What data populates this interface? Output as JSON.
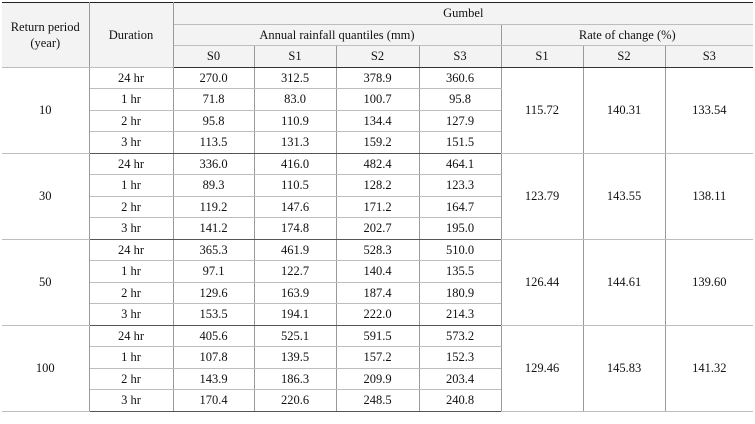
{
  "header": {
    "return_period": "Return period (year)",
    "duration": "Duration",
    "gumbel": "Gumbel",
    "annual_quantiles": "Annual rainfall quantiles (mm)",
    "rate_of_change": "Rate of change (%)",
    "quantile_cols": [
      "S0",
      "S1",
      "S2",
      "S3"
    ],
    "rate_cols": [
      "S1",
      "S2",
      "S3"
    ]
  },
  "groups": [
    {
      "return_period": "10",
      "rows": [
        {
          "duration": "24 hr",
          "s0": "270.0",
          "s1": "312.5",
          "s2": "378.9",
          "s3": "360.6"
        },
        {
          "duration": "1 hr",
          "s0": "71.8",
          "s1": "83.0",
          "s2": "100.7",
          "s3": "95.8"
        },
        {
          "duration": "2 hr",
          "s0": "95.8",
          "s1": "110.9",
          "s2": "134.4",
          "s3": "127.9"
        },
        {
          "duration": "3 hr",
          "s0": "113.5",
          "s1": "131.3",
          "s2": "159.2",
          "s3": "151.5"
        }
      ],
      "rate": {
        "s1": "115.72",
        "s2": "140.31",
        "s3": "133.54"
      }
    },
    {
      "return_period": "30",
      "rows": [
        {
          "duration": "24 hr",
          "s0": "336.0",
          "s1": "416.0",
          "s2": "482.4",
          "s3": "464.1"
        },
        {
          "duration": "1 hr",
          "s0": "89.3",
          "s1": "110.5",
          "s2": "128.2",
          "s3": "123.3"
        },
        {
          "duration": "2 hr",
          "s0": "119.2",
          "s1": "147.6",
          "s2": "171.2",
          "s3": "164.7"
        },
        {
          "duration": "3 hr",
          "s0": "141.2",
          "s1": "174.8",
          "s2": "202.7",
          "s3": "195.0"
        }
      ],
      "rate": {
        "s1": "123.79",
        "s2": "143.55",
        "s3": "138.11"
      }
    },
    {
      "return_period": "50",
      "rows": [
        {
          "duration": "24 hr",
          "s0": "365.3",
          "s1": "461.9",
          "s2": "528.3",
          "s3": "510.0"
        },
        {
          "duration": "1 hr",
          "s0": "97.1",
          "s1": "122.7",
          "s2": "140.4",
          "s3": "135.5"
        },
        {
          "duration": "2 hr",
          "s0": "129.6",
          "s1": "163.9",
          "s2": "187.4",
          "s3": "180.9"
        },
        {
          "duration": "3 hr",
          "s0": "153.5",
          "s1": "194.1",
          "s2": "222.0",
          "s3": "214.3"
        }
      ],
      "rate": {
        "s1": "126.44",
        "s2": "144.61",
        "s3": "139.60"
      }
    },
    {
      "return_period": "100",
      "rows": [
        {
          "duration": "24 hr",
          "s0": "405.6",
          "s1": "525.1",
          "s2": "591.5",
          "s3": "573.2"
        },
        {
          "duration": "1 hr",
          "s0": "107.8",
          "s1": "139.5",
          "s2": "157.2",
          "s3": "152.3"
        },
        {
          "duration": "2 hr",
          "s0": "143.9",
          "s1": "186.3",
          "s2": "209.9",
          "s3": "203.4"
        },
        {
          "duration": "3 hr",
          "s0": "170.4",
          "s1": "220.6",
          "s2": "248.5",
          "s3": "240.8"
        }
      ],
      "rate": {
        "s1": "129.46",
        "s2": "145.83",
        "s3": "141.32"
      }
    }
  ]
}
